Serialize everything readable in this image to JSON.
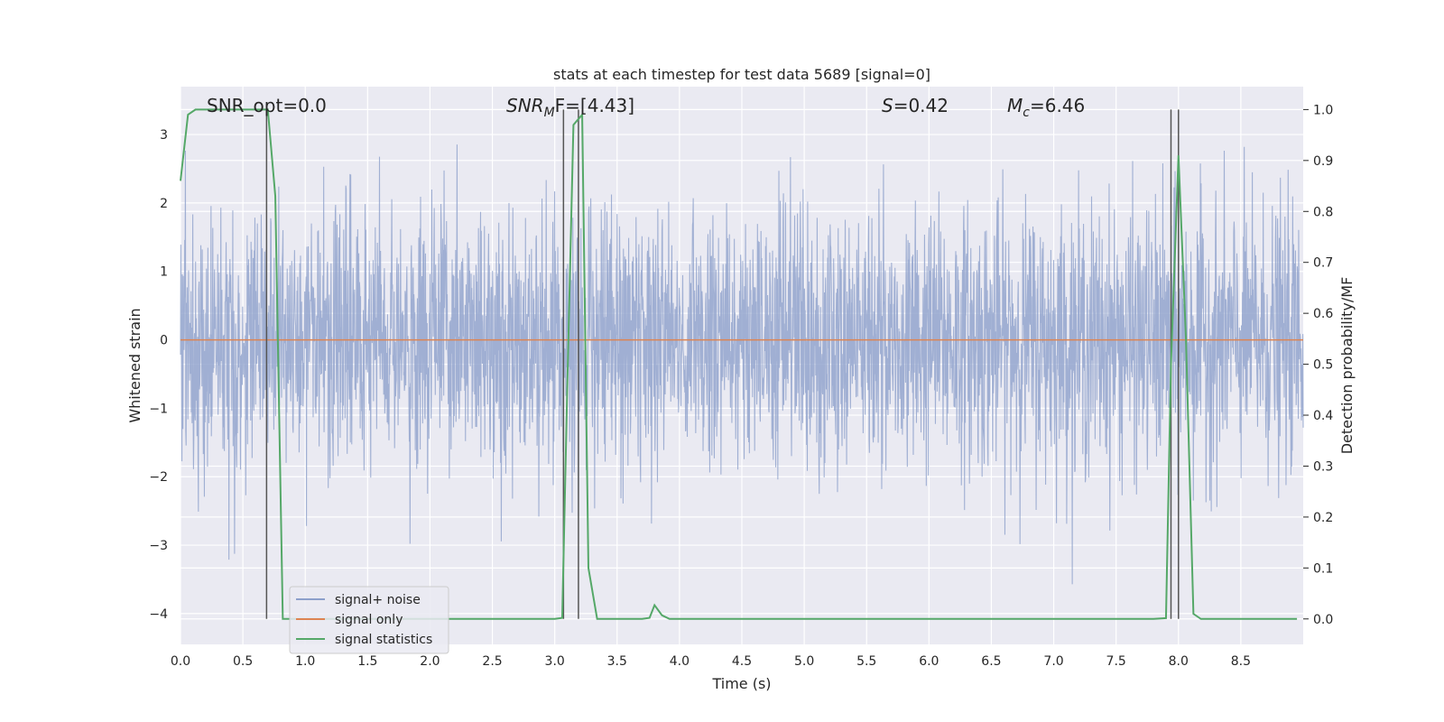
{
  "chart_data": {
    "type": "line",
    "title": "stats at each timestep for test data 5689 [signal=0]",
    "xlabel": "Time (s)",
    "ylabel": "Whitened strain",
    "y2label": "Detection probability/MF",
    "xlim": [
      0,
      9.0
    ],
    "ylim": [
      -4.45,
      3.7
    ],
    "y2lim": [
      -0.05,
      1.045
    ],
    "xticks": [
      "0.0",
      "0.5",
      "1.0",
      "1.5",
      "2.0",
      "2.5",
      "3.0",
      "3.5",
      "4.0",
      "4.5",
      "5.0",
      "5.5",
      "6.0",
      "6.5",
      "7.0",
      "7.5",
      "8.0",
      "8.5"
    ],
    "yticks": [
      "3",
      "2",
      "1",
      "0",
      "−1",
      "−2",
      "−3",
      "−4"
    ],
    "y2ticks": [
      "1.0",
      "0.9",
      "0.8",
      "0.7",
      "0.6",
      "0.5",
      "0.4",
      "0.3",
      "0.2",
      "0.1",
      "0.0"
    ],
    "grid": true,
    "legend_position": "lower-left",
    "annotations": [
      {
        "base": "SNR_opt=0.0",
        "sub": "",
        "tail": ""
      },
      {
        "base": "SNR",
        "sub": "M",
        "tail": "F=[4.43]"
      },
      {
        "base": "S",
        "sub": "",
        "tail": "=0.42"
      },
      {
        "base": "M",
        "sub": "c",
        "tail": "=6.46"
      }
    ],
    "series": [
      {
        "name": "signal+ noise",
        "color": "#8da0cb",
        "axis": "left",
        "description_values": "noise band roughly between -2 and 2"
      },
      {
        "name": "signal only",
        "color": "#dd8452",
        "axis": "left",
        "x": [
          0,
          9.0
        ],
        "y": [
          0,
          0
        ]
      },
      {
        "name": "signal statistics",
        "color": "#55a868",
        "axis": "right",
        "x": [
          0.0,
          0.06,
          0.12,
          0.3,
          0.5,
          0.6,
          0.7,
          0.76,
          0.82,
          1.0,
          2.0,
          3.0,
          3.06,
          3.1,
          3.15,
          3.22,
          3.27,
          3.34,
          3.5,
          3.7,
          3.76,
          3.8,
          3.86,
          3.92,
          4.0,
          5.0,
          6.0,
          7.0,
          7.5,
          7.8,
          7.9,
          7.94,
          8.0,
          8.06,
          8.12,
          8.18,
          8.3,
          8.95
        ],
        "y": [
          0.86,
          0.99,
          1.0,
          1.0,
          1.0,
          1.0,
          1.0,
          0.83,
          0.0,
          0.0,
          0.0,
          0.0,
          0.002,
          0.45,
          0.97,
          0.99,
          0.1,
          0.0,
          0.0,
          0.0,
          0.002,
          0.027,
          0.007,
          0.0,
          0.0,
          0.0,
          0.0,
          0.0,
          0.0,
          0.0,
          0.0015,
          0.5,
          0.91,
          0.55,
          0.01,
          0.0,
          0.0,
          0.0
        ]
      }
    ],
    "vertical_lines_x": [
      0.69,
      3.07,
      3.19,
      7.94,
      8.0
    ]
  }
}
